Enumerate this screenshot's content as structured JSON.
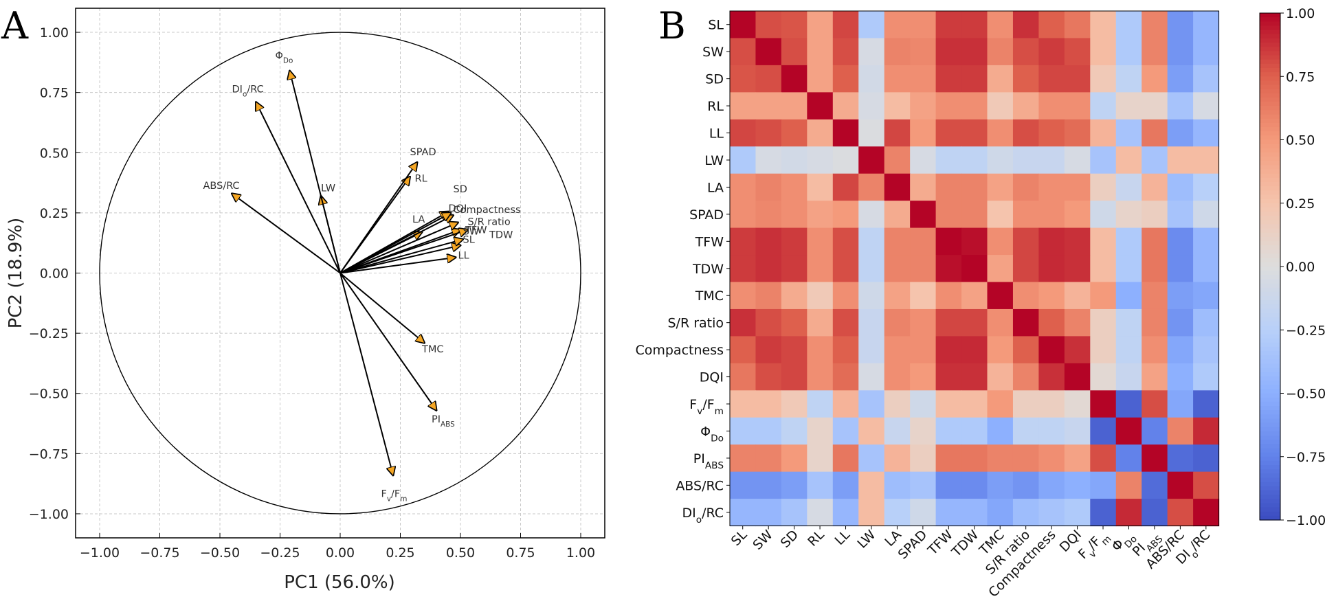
{
  "chart_data": [
    {
      "panel": "A",
      "type": "scatter",
      "subtype": "pca-loading-biplot",
      "xlabel": "PC1 (56.0%)",
      "ylabel": "PC2 (18.9%)",
      "xlim": [
        -1.1,
        1.1
      ],
      "ylim": [
        -1.1,
        1.1
      ],
      "xticks": [
        "−1.00",
        "−0.75",
        "−0.50",
        "−0.25",
        "0.00",
        "0.25",
        "0.50",
        "0.75",
        "1.00"
      ],
      "yticks": [
        "1.00",
        "0.75",
        "0.50",
        "0.25",
        "0.00",
        "−0.25",
        "−0.50",
        "−0.75",
        "−1.00"
      ],
      "grid": true,
      "unit_circle": true,
      "vectors": [
        {
          "name": "SL",
          "base": "SL",
          "sub": "",
          "x": 0.5,
          "y": 0.115,
          "lx": 0.51,
          "ly": 0.125
        },
        {
          "name": "SW",
          "base": "SW",
          "sub": "",
          "x": 0.51,
          "y": 0.14,
          "lx": 0.51,
          "ly": 0.16
        },
        {
          "name": "SD",
          "base": "SD",
          "sub": "",
          "x": 0.45,
          "y": 0.255,
          "lx": 0.47,
          "ly": 0.335
        },
        {
          "name": "RL",
          "base": "RL",
          "sub": "",
          "x": 0.29,
          "y": 0.4,
          "lx": 0.31,
          "ly": 0.38
        },
        {
          "name": "LL",
          "base": "LL",
          "sub": "",
          "x": 0.48,
          "y": 0.065,
          "lx": 0.49,
          "ly": 0.06
        },
        {
          "name": "LW",
          "base": "LW",
          "sub": "",
          "x": -0.08,
          "y": 0.32,
          "lx": -0.08,
          "ly": 0.34
        },
        {
          "name": "LA",
          "base": "LA",
          "sub": "",
          "x": 0.34,
          "y": 0.17,
          "lx": 0.3,
          "ly": 0.21
        },
        {
          "name": "SPAD",
          "base": "SPAD",
          "sub": "",
          "x": 0.32,
          "y": 0.46,
          "lx": 0.29,
          "ly": 0.49
        },
        {
          "name": "TFW",
          "base": "TFW",
          "sub": "",
          "x": 0.5,
          "y": 0.18,
          "lx": 0.52,
          "ly": 0.165
        },
        {
          "name": "TDW",
          "base": "TDW",
          "sub": "",
          "x": 0.53,
          "y": 0.18,
          "lx": 0.62,
          "ly": 0.145
        },
        {
          "name": "TMC",
          "base": "TMC",
          "sub": "",
          "x": 0.35,
          "y": -0.29,
          "lx": 0.34,
          "ly": -0.33
        },
        {
          "name": "S/R ratio",
          "base": "S/R ratio",
          "sub": "",
          "x": 0.49,
          "y": 0.21,
          "lx": 0.53,
          "ly": 0.2
        },
        {
          "name": "Compactness",
          "base": "Compactness",
          "sub": "",
          "x": 0.47,
          "y": 0.24,
          "lx": 0.47,
          "ly": 0.25
        },
        {
          "name": "DQI",
          "base": "DQI",
          "sub": "",
          "x": 0.46,
          "y": 0.25,
          "lx": 0.45,
          "ly": 0.255
        },
        {
          "name": "Fv/Fm",
          "base": "F",
          "sub": "v",
          "base2": "/F",
          "sub2": "m",
          "x": 0.22,
          "y": -0.84,
          "lx": 0.17,
          "ly": -0.93
        },
        {
          "name": "ΦDo",
          "base": "Φ",
          "sub": "Do",
          "x": -0.21,
          "y": 0.84,
          "lx": -0.27,
          "ly": 0.89
        },
        {
          "name": "PIABS",
          "base": "PI",
          "sub": "ABS",
          "x": 0.4,
          "y": -0.57,
          "lx": 0.38,
          "ly": -0.62
        },
        {
          "name": "ABS/RC",
          "base": "ABS/RC",
          "sub": "",
          "x": -0.45,
          "y": 0.33,
          "lx": -0.57,
          "ly": 0.35
        },
        {
          "name": "DIo/RC",
          "base": "DI",
          "sub": "o",
          "base2": "/RC",
          "sub2": "",
          "x": -0.35,
          "y": 0.71,
          "lx": -0.45,
          "ly": 0.75
        }
      ]
    },
    {
      "panel": "B",
      "type": "heatmap",
      "title": "",
      "colormap": "coolwarm",
      "vmin": -1.0,
      "vmax": 1.0,
      "colorbar_ticks": [
        "1.00",
        "0.75",
        "0.50",
        "0.25",
        "0.00",
        "−0.25",
        "−0.50",
        "−0.75",
        "−1.00"
      ],
      "variables": [
        {
          "name": "SL",
          "base": "SL",
          "sub": ""
        },
        {
          "name": "SW",
          "base": "SW",
          "sub": ""
        },
        {
          "name": "SD",
          "base": "SD",
          "sub": ""
        },
        {
          "name": "RL",
          "base": "RL",
          "sub": ""
        },
        {
          "name": "LL",
          "base": "LL",
          "sub": ""
        },
        {
          "name": "LW",
          "base": "LW",
          "sub": ""
        },
        {
          "name": "LA",
          "base": "LA",
          "sub": ""
        },
        {
          "name": "SPAD",
          "base": "SPAD",
          "sub": ""
        },
        {
          "name": "TFW",
          "base": "TFW",
          "sub": ""
        },
        {
          "name": "TDW",
          "base": "TDW",
          "sub": ""
        },
        {
          "name": "TMC",
          "base": "TMC",
          "sub": ""
        },
        {
          "name": "S/R ratio",
          "base": "S/R ratio",
          "sub": ""
        },
        {
          "name": "Compactness",
          "base": "Compactness",
          "sub": ""
        },
        {
          "name": "DQI",
          "base": "DQI",
          "sub": ""
        },
        {
          "name": "Fv/Fm",
          "base": "F",
          "sub": "v",
          "base2": "/F",
          "sub2": "m"
        },
        {
          "name": "ΦDo",
          "base": "Φ",
          "sub": "Do"
        },
        {
          "name": "PIABS",
          "base": "PI",
          "sub": "ABS"
        },
        {
          "name": "ABS/RC",
          "base": "ABS/RC",
          "sub": ""
        },
        {
          "name": "DIo/RC",
          "base": "DI",
          "sub": "o",
          "base2": "/RC",
          "sub2": ""
        }
      ],
      "matrix": [
        [
          1.0,
          0.8,
          0.78,
          0.45,
          0.82,
          -0.3,
          0.55,
          0.55,
          0.85,
          0.85,
          0.55,
          0.88,
          0.75,
          0.65,
          0.3,
          -0.3,
          0.6,
          -0.65,
          -0.45
        ],
        [
          0.8,
          1.0,
          0.8,
          0.45,
          0.8,
          -0.05,
          0.6,
          0.58,
          0.88,
          0.88,
          0.6,
          0.8,
          0.85,
          0.8,
          0.3,
          -0.3,
          0.6,
          -0.65,
          -0.45
        ],
        [
          0.78,
          0.8,
          1.0,
          0.45,
          0.75,
          -0.08,
          0.55,
          0.55,
          0.85,
          0.85,
          0.4,
          0.75,
          0.82,
          0.82,
          0.2,
          -0.2,
          0.5,
          -0.6,
          -0.35
        ],
        [
          0.45,
          0.45,
          0.45,
          1.0,
          0.4,
          -0.05,
          0.3,
          0.45,
          0.55,
          0.55,
          0.2,
          0.4,
          0.55,
          0.55,
          -0.2,
          0.1,
          0.1,
          -0.35,
          -0.05
        ],
        [
          0.82,
          0.8,
          0.75,
          0.4,
          1.0,
          -0.02,
          0.82,
          0.5,
          0.8,
          0.8,
          0.55,
          0.8,
          0.75,
          0.7,
          0.35,
          -0.35,
          0.65,
          -0.6,
          -0.45
        ],
        [
          -0.3,
          -0.05,
          -0.08,
          -0.05,
          -0.02,
          1.0,
          0.6,
          -0.05,
          -0.2,
          -0.2,
          -0.1,
          -0.15,
          -0.15,
          -0.05,
          -0.35,
          0.3,
          -0.35,
          0.3,
          0.3
        ],
        [
          0.55,
          0.6,
          0.55,
          0.3,
          0.82,
          0.6,
          1.0,
          0.4,
          0.6,
          0.6,
          0.45,
          0.6,
          0.55,
          0.55,
          0.15,
          -0.15,
          0.35,
          -0.4,
          -0.25
        ],
        [
          0.55,
          0.58,
          0.55,
          0.45,
          0.5,
          -0.05,
          0.4,
          1.0,
          0.6,
          0.6,
          0.25,
          0.55,
          0.55,
          0.5,
          -0.1,
          0.1,
          0.15,
          -0.35,
          -0.1
        ],
        [
          0.85,
          0.88,
          0.85,
          0.55,
          0.8,
          -0.2,
          0.6,
          0.6,
          1.0,
          0.97,
          0.55,
          0.82,
          0.9,
          0.88,
          0.3,
          -0.3,
          0.65,
          -0.7,
          -0.45
        ],
        [
          0.85,
          0.88,
          0.85,
          0.55,
          0.8,
          -0.2,
          0.6,
          0.6,
          0.97,
          1.0,
          0.45,
          0.82,
          0.9,
          0.88,
          0.3,
          -0.3,
          0.65,
          -0.7,
          -0.45
        ],
        [
          0.55,
          0.6,
          0.4,
          0.2,
          0.55,
          -0.1,
          0.45,
          0.25,
          0.55,
          0.45,
          1.0,
          0.55,
          0.5,
          0.35,
          0.5,
          -0.5,
          0.6,
          -0.6,
          -0.55
        ],
        [
          0.88,
          0.8,
          0.75,
          0.4,
          0.8,
          -0.15,
          0.6,
          0.55,
          0.82,
          0.82,
          0.55,
          1.0,
          0.75,
          0.6,
          0.15,
          -0.2,
          0.6,
          -0.65,
          -0.4
        ],
        [
          0.75,
          0.85,
          0.82,
          0.55,
          0.75,
          -0.15,
          0.55,
          0.55,
          0.9,
          0.9,
          0.5,
          0.75,
          1.0,
          0.88,
          0.15,
          -0.2,
          0.55,
          -0.55,
          -0.35
        ],
        [
          0.65,
          0.8,
          0.82,
          0.55,
          0.7,
          -0.05,
          0.55,
          0.5,
          0.88,
          0.88,
          0.35,
          0.6,
          0.88,
          1.0,
          0.05,
          -0.15,
          0.45,
          -0.5,
          -0.3
        ],
        [
          0.3,
          0.3,
          0.2,
          -0.2,
          0.35,
          -0.35,
          0.15,
          -0.1,
          0.3,
          0.3,
          0.5,
          0.15,
          0.15,
          0.05,
          1.0,
          -0.9,
          0.8,
          -0.55,
          -0.9
        ],
        [
          -0.3,
          -0.3,
          -0.2,
          0.1,
          -0.35,
          0.3,
          -0.15,
          0.1,
          -0.3,
          -0.3,
          -0.5,
          -0.2,
          -0.2,
          -0.15,
          -0.9,
          1.0,
          -0.75,
          0.6,
          0.9
        ],
        [
          0.6,
          0.6,
          0.5,
          0.1,
          0.65,
          -0.35,
          0.35,
          0.15,
          0.65,
          0.65,
          0.6,
          0.6,
          0.55,
          0.45,
          0.8,
          -0.75,
          1.0,
          -0.85,
          -0.9
        ],
        [
          -0.65,
          -0.65,
          -0.6,
          -0.35,
          -0.6,
          0.3,
          -0.4,
          -0.35,
          -0.7,
          -0.7,
          -0.6,
          -0.65,
          -0.55,
          -0.5,
          -0.55,
          0.6,
          -0.85,
          1.0,
          0.8
        ],
        [
          -0.45,
          -0.45,
          -0.35,
          -0.05,
          -0.45,
          0.3,
          -0.25,
          -0.1,
          -0.45,
          -0.45,
          -0.55,
          -0.4,
          -0.35,
          -0.3,
          -0.9,
          0.9,
          -0.9,
          0.8,
          1.0
        ]
      ]
    }
  ],
  "panels": {
    "a_label": "A",
    "b_label": "B"
  }
}
